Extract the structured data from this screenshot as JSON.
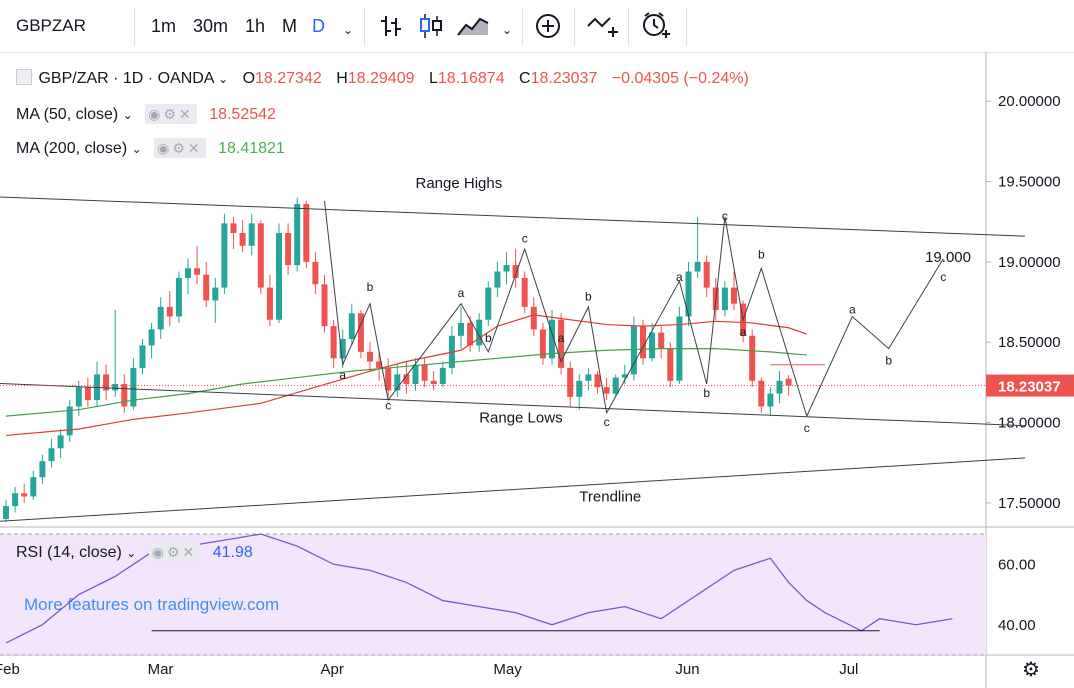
{
  "toolbar": {
    "symbol": "GBPZAR",
    "intervals": [
      "1m",
      "30m",
      "1h",
      "M",
      "D"
    ],
    "active_interval": "D",
    "icons": [
      "bar-style-icon",
      "candle-style-icon",
      "area-style-icon",
      "chevron-down-icon",
      "add-indicator-icon",
      "compare-icon",
      "alert-icon"
    ]
  },
  "legend": {
    "title": "GBP/ZAR · 1D · OANDA",
    "o_label": "O",
    "o": "18.27342",
    "h_label": "H",
    "h": "18.29409",
    "l_label": "L",
    "l": "18.16874",
    "c_label": "C",
    "c": "18.23037",
    "change": "−0.04305 (−0.24%)",
    "ma50_label": "MA (50, close)",
    "ma50_value": "18.52542",
    "ma200_label": "MA (200, close)",
    "ma200_value": "18.41821",
    "rsi_label": "RSI (14, close)",
    "rsi_value": "41.98"
  },
  "watermark": "More features on tradingview.com",
  "chart_data": {
    "type": "candlestick",
    "price_axis": {
      "ticks": [
        "20.00000",
        "19.50000",
        "19.00000",
        "18.50000",
        "18.00000",
        "17.50000"
      ],
      "range": [
        17.35,
        20.3
      ]
    },
    "last_price_label": "18.23037",
    "time_axis": {
      "labels": [
        "Feb",
        "Mar",
        "Apr",
        "May",
        "Jun",
        "Jul"
      ]
    },
    "rsi_axis": {
      "ticks": [
        "60.00",
        "40.00"
      ],
      "range": [
        30,
        72
      ],
      "band": [
        30,
        70
      ]
    },
    "colors": {
      "up": "#26a69a",
      "down": "#ef5350",
      "ma50": "#e53935",
      "ma200": "#43a047",
      "rsi": "#7e57c2",
      "band": "#f3e6fc",
      "last": "#ef5350"
    },
    "candles_ohlc": [
      [
        17.4,
        17.52,
        17.38,
        17.48
      ],
      [
        17.48,
        17.6,
        17.44,
        17.56
      ],
      [
        17.56,
        17.62,
        17.5,
        17.54
      ],
      [
        17.54,
        17.7,
        17.52,
        17.66
      ],
      [
        17.66,
        17.8,
        17.62,
        17.76
      ],
      [
        17.76,
        17.9,
        17.72,
        17.84
      ],
      [
        17.84,
        17.96,
        17.78,
        17.92
      ],
      [
        17.92,
        18.14,
        17.88,
        18.1
      ],
      [
        18.1,
        18.26,
        18.04,
        18.22
      ],
      [
        18.22,
        18.28,
        18.1,
        18.14
      ],
      [
        18.14,
        18.38,
        18.1,
        18.3
      ],
      [
        18.3,
        18.36,
        18.14,
        18.2
      ],
      [
        18.2,
        18.7,
        18.16,
        18.24
      ],
      [
        18.24,
        18.3,
        18.06,
        18.1
      ],
      [
        18.1,
        18.4,
        18.08,
        18.34
      ],
      [
        18.34,
        18.52,
        18.3,
        18.48
      ],
      [
        18.48,
        18.62,
        18.4,
        18.58
      ],
      [
        18.58,
        18.78,
        18.52,
        18.72
      ],
      [
        18.72,
        18.82,
        18.6,
        18.66
      ],
      [
        18.66,
        18.94,
        18.62,
        18.9
      ],
      [
        18.9,
        19.02,
        18.8,
        18.96
      ],
      [
        18.96,
        19.1,
        18.86,
        18.92
      ],
      [
        18.92,
        19.0,
        18.72,
        18.76
      ],
      [
        18.76,
        18.9,
        18.62,
        18.84
      ],
      [
        18.84,
        19.3,
        18.8,
        19.24
      ],
      [
        19.24,
        19.28,
        19.08,
        19.18
      ],
      [
        19.18,
        19.26,
        19.06,
        19.1
      ],
      [
        19.1,
        19.3,
        19.04,
        19.24
      ],
      [
        19.24,
        19.26,
        18.8,
        18.84
      ],
      [
        18.84,
        18.92,
        18.6,
        18.64
      ],
      [
        18.64,
        19.24,
        18.62,
        19.18
      ],
      [
        19.18,
        19.24,
        18.92,
        18.98
      ],
      [
        18.98,
        19.4,
        18.94,
        19.36
      ],
      [
        19.36,
        19.38,
        18.96,
        19.0
      ],
      [
        19.0,
        19.06,
        18.8,
        18.86
      ],
      [
        18.86,
        18.92,
        18.56,
        18.6
      ],
      [
        18.6,
        18.64,
        18.34,
        18.4
      ],
      [
        18.4,
        18.58,
        18.34,
        18.52
      ],
      [
        18.52,
        18.74,
        18.48,
        18.68
      ],
      [
        18.68,
        18.7,
        18.4,
        18.44
      ],
      [
        18.44,
        18.5,
        18.32,
        18.38
      ],
      [
        18.38,
        18.44,
        18.26,
        18.34
      ],
      [
        18.34,
        18.4,
        18.16,
        18.2
      ],
      [
        18.2,
        18.36,
        18.16,
        18.3
      ],
      [
        18.3,
        18.38,
        18.18,
        18.24
      ],
      [
        18.24,
        18.4,
        18.2,
        18.36
      ],
      [
        18.36,
        18.4,
        18.22,
        18.26
      ],
      [
        18.26,
        18.32,
        18.2,
        18.24
      ],
      [
        18.24,
        18.38,
        18.22,
        18.34
      ],
      [
        18.34,
        18.6,
        18.3,
        18.54
      ],
      [
        18.54,
        18.72,
        18.46,
        18.62
      ],
      [
        18.62,
        18.66,
        18.44,
        18.48
      ],
      [
        18.48,
        18.68,
        18.44,
        18.64
      ],
      [
        18.64,
        18.88,
        18.6,
        18.84
      ],
      [
        18.84,
        19.0,
        18.78,
        18.94
      ],
      [
        18.94,
        19.06,
        18.86,
        18.98
      ],
      [
        18.98,
        19.08,
        18.84,
        18.9
      ],
      [
        18.9,
        18.94,
        18.68,
        18.72
      ],
      [
        18.72,
        18.78,
        18.54,
        18.58
      ],
      [
        18.58,
        18.62,
        18.36,
        18.4
      ],
      [
        18.4,
        18.7,
        18.36,
        18.64
      ],
      [
        18.64,
        18.68,
        18.3,
        18.34
      ],
      [
        18.34,
        18.38,
        18.1,
        18.16
      ],
      [
        18.16,
        18.3,
        18.08,
        18.26
      ],
      [
        18.26,
        18.34,
        18.2,
        18.3
      ],
      [
        18.3,
        18.32,
        18.18,
        18.22
      ],
      [
        18.22,
        18.28,
        18.14,
        18.18
      ],
      [
        18.18,
        18.3,
        18.16,
        18.28
      ],
      [
        18.28,
        18.36,
        18.24,
        18.3
      ],
      [
        18.3,
        18.66,
        18.26,
        18.6
      ],
      [
        18.6,
        18.64,
        18.36,
        18.4
      ],
      [
        18.4,
        18.62,
        18.38,
        18.56
      ],
      [
        18.56,
        18.6,
        18.4,
        18.46
      ],
      [
        18.46,
        18.5,
        18.22,
        18.26
      ],
      [
        18.26,
        18.72,
        18.24,
        18.66
      ],
      [
        18.66,
        19.0,
        18.6,
        18.94
      ],
      [
        18.94,
        19.28,
        18.9,
        19.0
      ],
      [
        19.0,
        19.04,
        18.78,
        18.84
      ],
      [
        18.84,
        18.9,
        18.64,
        18.7
      ],
      [
        18.7,
        18.88,
        18.66,
        18.84
      ],
      [
        18.84,
        18.94,
        18.7,
        18.74
      ],
      [
        18.74,
        18.76,
        18.5,
        18.54
      ],
      [
        18.54,
        18.58,
        18.22,
        18.26
      ],
      [
        18.26,
        18.28,
        18.06,
        18.1
      ],
      [
        18.1,
        18.22,
        18.04,
        18.18
      ],
      [
        18.18,
        18.32,
        18.12,
        18.26
      ],
      [
        18.27342,
        18.29409,
        18.16874,
        18.23037
      ]
    ],
    "ma50": [
      [
        0,
        17.92
      ],
      [
        8,
        17.96
      ],
      [
        14,
        18.02
      ],
      [
        20,
        18.06
      ],
      [
        28,
        18.12
      ],
      [
        34,
        18.22
      ],
      [
        40,
        18.32
      ],
      [
        44,
        18.38
      ],
      [
        50,
        18.45
      ],
      [
        54,
        18.6
      ],
      [
        58,
        18.67
      ],
      [
        62,
        18.64
      ],
      [
        66,
        18.61
      ],
      [
        70,
        18.6
      ],
      [
        74,
        18.61
      ],
      [
        78,
        18.63
      ],
      [
        82,
        18.62
      ],
      [
        86,
        18.59
      ],
      [
        88,
        18.55
      ]
    ],
    "ma200": [
      [
        0,
        18.04
      ],
      [
        8,
        18.08
      ],
      [
        14,
        18.14
      ],
      [
        20,
        18.18
      ],
      [
        26,
        18.24
      ],
      [
        32,
        18.28
      ],
      [
        38,
        18.32
      ],
      [
        44,
        18.35
      ],
      [
        50,
        18.38
      ],
      [
        54,
        18.4
      ],
      [
        60,
        18.43
      ],
      [
        66,
        18.45
      ],
      [
        72,
        18.46
      ],
      [
        78,
        18.46
      ],
      [
        84,
        18.44
      ],
      [
        88,
        18.42
      ]
    ],
    "rsi": [
      [
        0,
        34
      ],
      [
        4,
        40
      ],
      [
        8,
        50
      ],
      [
        12,
        56
      ],
      [
        16,
        64
      ],
      [
        20,
        66
      ],
      [
        24,
        68
      ],
      [
        28,
        70
      ],
      [
        32,
        66
      ],
      [
        36,
        60
      ],
      [
        40,
        58
      ],
      [
        44,
        54
      ],
      [
        48,
        48
      ],
      [
        52,
        46
      ],
      [
        56,
        44
      ],
      [
        60,
        40
      ],
      [
        62,
        42
      ],
      [
        64,
        44
      ],
      [
        68,
        46
      ],
      [
        72,
        42
      ],
      [
        76,
        50
      ],
      [
        80,
        58
      ],
      [
        84,
        62
      ],
      [
        86,
        54
      ],
      [
        88,
        48
      ],
      [
        90,
        44
      ],
      [
        94,
        38
      ],
      [
        96,
        42
      ],
      [
        100,
        40
      ],
      [
        104,
        42
      ]
    ],
    "annotations": {
      "lines": [
        {
          "label": "Range Highs",
          "from": [
            -8,
            19.42
          ],
          "to": [
            112,
            19.16
          ]
        },
        {
          "label": "Range Lows",
          "from": [
            -8,
            18.26
          ],
          "to": [
            112,
            17.98
          ]
        },
        {
          "label": "Trendline",
          "from": [
            -8,
            17.36
          ],
          "to": [
            112,
            17.78
          ]
        }
      ],
      "wave_labels": [
        {
          "text": "a",
          "x": 37,
          "y": 18.27
        },
        {
          "text": "b",
          "x": 40,
          "y": 18.82
        },
        {
          "text": "c",
          "x": 42,
          "y": 18.08
        },
        {
          "text": "a",
          "x": 50,
          "y": 18.78
        },
        {
          "text": "b",
          "x": 53,
          "y": 18.5
        },
        {
          "text": "c",
          "x": 57,
          "y": 19.12
        },
        {
          "text": "a",
          "x": 61,
          "y": 18.5
        },
        {
          "text": "b",
          "x": 64,
          "y": 18.76
        },
        {
          "text": "c",
          "x": 66,
          "y": 17.98
        },
        {
          "text": "a",
          "x": 74,
          "y": 18.88
        },
        {
          "text": "b",
          "x": 77,
          "y": 18.16
        },
        {
          "text": "c",
          "x": 79,
          "y": 19.26
        },
        {
          "text": "a",
          "x": 81,
          "y": 18.54
        },
        {
          "text": "b",
          "x": 83,
          "y": 19.02
        },
        {
          "text": "c",
          "x": 88,
          "y": 17.94
        },
        {
          "text": "a",
          "x": 93,
          "y": 18.68
        },
        {
          "text": "b",
          "x": 97,
          "y": 18.36
        },
        {
          "text": "c",
          "x": 103,
          "y": 18.88
        }
      ],
      "projection_label": "19.000"
    }
  }
}
